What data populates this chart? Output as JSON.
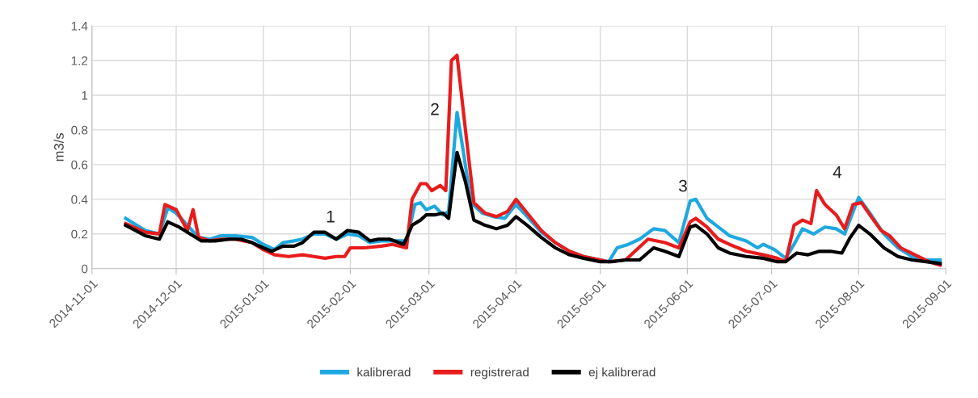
{
  "chart_data": {
    "type": "line",
    "ylabel": "m3/s",
    "ylim": [
      0,
      1.4
    ],
    "yticks": [
      0,
      0.2,
      0.4,
      0.6,
      0.8,
      1,
      1.2,
      1.4
    ],
    "xlim": [
      "2014-11-01",
      "2015-09-01"
    ],
    "xticks": [
      "2014-11-01",
      "2014-12-01",
      "2015-01-01",
      "2015-02-01",
      "2015-03-01",
      "2015-04-01",
      "2015-05-01",
      "2015-06-01",
      "2015-07-01",
      "2015-08-01",
      "2015-09-01"
    ],
    "grid": true,
    "legend": "bottom",
    "marker": "none",
    "line_style": "solid",
    "annotations": [
      "1",
      "2",
      "3",
      "4"
    ],
    "series": [
      {
        "name": "kalibrerad",
        "color": "#1ea8e0",
        "x": [
          "2014-11-13",
          "2014-11-20",
          "2014-11-25",
          "2014-11-28",
          "2014-12-01",
          "2014-12-05",
          "2014-12-09",
          "2014-12-13",
          "2014-12-17",
          "2014-12-22",
          "2014-12-28",
          "2015-01-01",
          "2015-01-05",
          "2015-01-08",
          "2015-01-12",
          "2015-01-15",
          "2015-01-19",
          "2015-01-23",
          "2015-01-27",
          "2015-01-31",
          "2015-02-04",
          "2015-02-08",
          "2015-02-12",
          "2015-02-16",
          "2015-02-21",
          "2015-02-24",
          "2015-02-26",
          "2015-02-28",
          "2015-03-03",
          "2015-03-06",
          "2015-03-08",
          "2015-03-11",
          "2015-03-13",
          "2015-03-16",
          "2015-03-20",
          "2015-03-24",
          "2015-03-28",
          "2015-04-01",
          "2015-04-05",
          "2015-04-10",
          "2015-04-15",
          "2015-04-20",
          "2015-04-25",
          "2015-05-01",
          "2015-05-04",
          "2015-05-07",
          "2015-05-11",
          "2015-05-15",
          "2015-05-20",
          "2015-05-24",
          "2015-05-29",
          "2015-06-02",
          "2015-06-04",
          "2015-06-08",
          "2015-06-12",
          "2015-06-16",
          "2015-06-22",
          "2015-06-26",
          "2015-06-28",
          "2015-07-02",
          "2015-07-06",
          "2015-07-09",
          "2015-07-12",
          "2015-07-16",
          "2015-07-20",
          "2015-07-24",
          "2015-07-27",
          "2015-07-31",
          "2015-08-01",
          "2015-08-05",
          "2015-08-10",
          "2015-08-15",
          "2015-08-20",
          "2015-08-25",
          "2015-08-30"
        ],
        "values": [
          0.29,
          0.22,
          0.2,
          0.35,
          0.32,
          0.25,
          0.18,
          0.17,
          0.19,
          0.19,
          0.18,
          0.14,
          0.11,
          0.15,
          0.16,
          0.17,
          0.2,
          0.2,
          0.17,
          0.2,
          0.19,
          0.15,
          0.16,
          0.16,
          0.16,
          0.37,
          0.38,
          0.34,
          0.36,
          0.31,
          0.33,
          0.9,
          0.7,
          0.38,
          0.32,
          0.3,
          0.29,
          0.37,
          0.3,
          0.21,
          0.15,
          0.1,
          0.07,
          0.05,
          0.04,
          0.12,
          0.14,
          0.17,
          0.23,
          0.22,
          0.15,
          0.39,
          0.4,
          0.29,
          0.24,
          0.19,
          0.16,
          0.12,
          0.14,
          0.11,
          0.06,
          0.14,
          0.23,
          0.2,
          0.24,
          0.23,
          0.2,
          0.37,
          0.41,
          0.32,
          0.2,
          0.12,
          0.07,
          0.05,
          0.05
        ]
      },
      {
        "name": "registrerad",
        "color": "#e81c1c",
        "x": [
          "2014-11-13",
          "2014-11-20",
          "2014-11-25",
          "2014-11-27",
          "2014-12-01",
          "2014-12-05",
          "2014-12-07",
          "2014-12-09",
          "2014-12-13",
          "2014-12-17",
          "2014-12-22",
          "2014-12-28",
          "2015-01-01",
          "2015-01-05",
          "2015-01-10",
          "2015-01-15",
          "2015-01-19",
          "2015-01-23",
          "2015-01-27",
          "2015-01-30",
          "2015-02-01",
          "2015-02-06",
          "2015-02-12",
          "2015-02-16",
          "2015-02-21",
          "2015-02-23",
          "2015-02-26",
          "2015-02-28",
          "2015-03-02",
          "2015-03-05",
          "2015-03-07",
          "2015-03-09",
          "2015-03-11",
          "2015-03-14",
          "2015-03-17",
          "2015-03-21",
          "2015-03-25",
          "2015-03-29",
          "2015-04-01",
          "2015-04-05",
          "2015-04-10",
          "2015-04-15",
          "2015-04-20",
          "2015-04-25",
          "2015-05-01",
          "2015-05-04",
          "2015-05-10",
          "2015-05-18",
          "2015-05-24",
          "2015-05-29",
          "2015-06-02",
          "2015-06-04",
          "2015-06-08",
          "2015-06-12",
          "2015-06-16",
          "2015-06-22",
          "2015-06-28",
          "2015-07-03",
          "2015-07-06",
          "2015-07-09",
          "2015-07-12",
          "2015-07-15",
          "2015-07-17",
          "2015-07-20",
          "2015-07-24",
          "2015-07-27",
          "2015-07-30",
          "2015-08-02",
          "2015-08-05",
          "2015-08-09",
          "2015-08-12",
          "2015-08-16",
          "2015-08-21",
          "2015-08-26",
          "2015-08-30"
        ],
        "values": [
          0.26,
          0.21,
          0.2,
          0.37,
          0.34,
          0.22,
          0.34,
          0.18,
          0.16,
          0.17,
          0.17,
          0.15,
          0.11,
          0.08,
          0.07,
          0.08,
          0.07,
          0.06,
          0.07,
          0.07,
          0.12,
          0.12,
          0.13,
          0.14,
          0.12,
          0.4,
          0.49,
          0.49,
          0.45,
          0.48,
          0.45,
          1.2,
          1.23,
          0.8,
          0.38,
          0.32,
          0.3,
          0.33,
          0.4,
          0.32,
          0.22,
          0.15,
          0.1,
          0.07,
          0.05,
          0.04,
          0.05,
          0.17,
          0.15,
          0.12,
          0.27,
          0.29,
          0.24,
          0.17,
          0.14,
          0.1,
          0.08,
          0.06,
          0.04,
          0.25,
          0.28,
          0.26,
          0.45,
          0.37,
          0.31,
          0.23,
          0.37,
          0.38,
          0.31,
          0.22,
          0.19,
          0.12,
          0.08,
          0.04,
          0.02
        ]
      },
      {
        "name": "ej kalibrerad",
        "color": "#000000",
        "x": [
          "2014-11-13",
          "2014-11-20",
          "2014-11-25",
          "2014-11-28",
          "2014-12-02",
          "2014-12-07",
          "2014-12-10",
          "2014-12-15",
          "2014-12-20",
          "2014-12-24",
          "2014-12-28",
          "2015-01-01",
          "2015-01-04",
          "2015-01-08",
          "2015-01-12",
          "2015-01-15",
          "2015-01-19",
          "2015-01-23",
          "2015-01-27",
          "2015-01-31",
          "2015-02-04",
          "2015-02-08",
          "2015-02-11",
          "2015-02-15",
          "2015-02-20",
          "2015-02-23",
          "2015-02-26",
          "2015-02-28",
          "2015-03-03",
          "2015-03-06",
          "2015-03-08",
          "2015-03-11",
          "2015-03-14",
          "2015-03-17",
          "2015-03-21",
          "2015-03-25",
          "2015-03-29",
          "2015-04-01",
          "2015-04-05",
          "2015-04-10",
          "2015-04-15",
          "2015-04-20",
          "2015-04-25",
          "2015-05-01",
          "2015-05-05",
          "2015-05-10",
          "2015-05-15",
          "2015-05-20",
          "2015-05-24",
          "2015-05-29",
          "2015-06-02",
          "2015-06-04",
          "2015-06-08",
          "2015-06-12",
          "2015-06-16",
          "2015-06-22",
          "2015-06-28",
          "2015-07-03",
          "2015-07-06",
          "2015-07-10",
          "2015-07-14",
          "2015-07-18",
          "2015-07-22",
          "2015-07-26",
          "2015-07-29",
          "2015-08-01",
          "2015-08-05",
          "2015-08-10",
          "2015-08-15",
          "2015-08-20",
          "2015-08-25",
          "2015-08-30"
        ],
        "values": [
          0.25,
          0.19,
          0.17,
          0.27,
          0.24,
          0.19,
          0.16,
          0.16,
          0.17,
          0.17,
          0.15,
          0.12,
          0.1,
          0.13,
          0.13,
          0.15,
          0.21,
          0.21,
          0.17,
          0.22,
          0.21,
          0.16,
          0.17,
          0.17,
          0.14,
          0.25,
          0.28,
          0.31,
          0.31,
          0.32,
          0.29,
          0.67,
          0.5,
          0.28,
          0.25,
          0.23,
          0.25,
          0.3,
          0.25,
          0.18,
          0.12,
          0.08,
          0.06,
          0.04,
          0.04,
          0.05,
          0.05,
          0.12,
          0.1,
          0.07,
          0.24,
          0.25,
          0.2,
          0.12,
          0.09,
          0.07,
          0.06,
          0.04,
          0.04,
          0.09,
          0.08,
          0.1,
          0.1,
          0.09,
          0.18,
          0.25,
          0.2,
          0.12,
          0.07,
          0.05,
          0.04,
          0.03
        ]
      }
    ]
  }
}
